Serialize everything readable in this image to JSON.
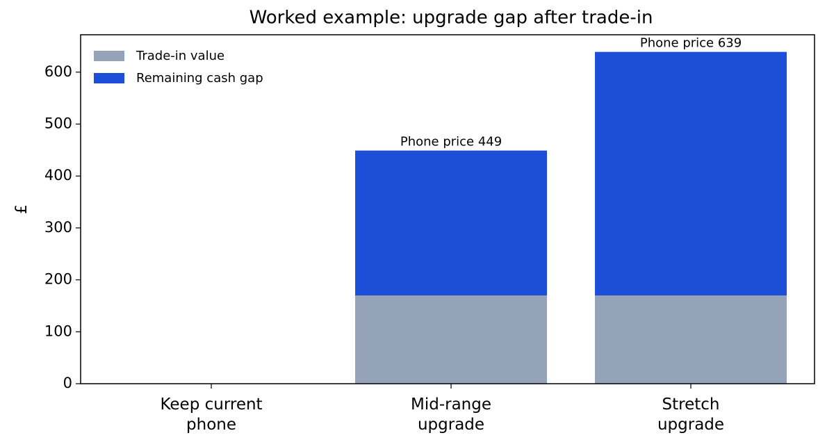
{
  "chart_data": {
    "type": "stacked_bar",
    "title": "Worked example: upgrade gap after trade-in",
    "ylabel": "£",
    "categories": [
      "Keep current\nphone",
      "Mid-range\nupgrade",
      "Stretch\nupgrade"
    ],
    "series": [
      {
        "name": "Trade-in value",
        "color": "#94a3b8",
        "values": [
          0,
          170,
          170
        ]
      },
      {
        "name": "Remaining cash gap",
        "color": "#1d4ed8",
        "values": [
          0,
          279,
          469
        ]
      }
    ],
    "total_labels": [
      null,
      "Phone price 449",
      "Phone price 639"
    ],
    "ylim": [
      0,
      672
    ],
    "yticks": [
      0,
      100,
      200,
      300,
      400,
      500,
      600
    ],
    "legend": "upper left"
  }
}
